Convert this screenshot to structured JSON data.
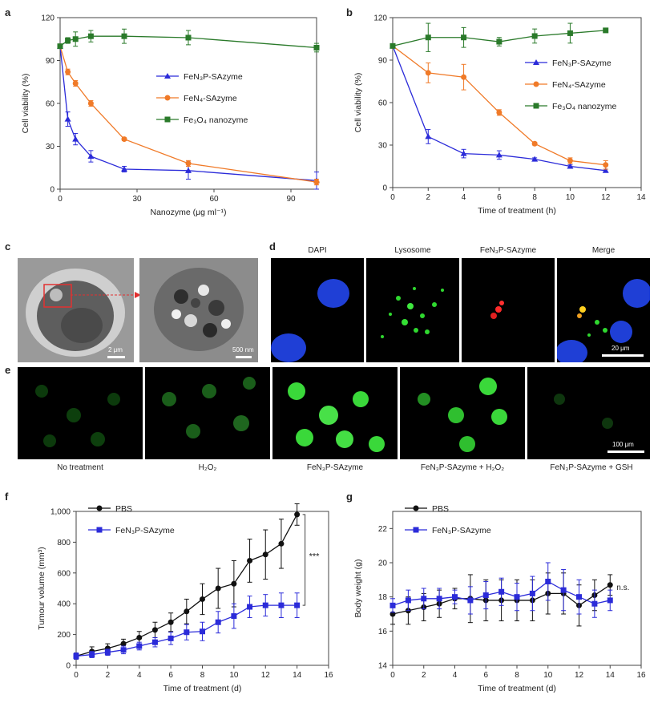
{
  "panels": {
    "a": "a",
    "b": "b",
    "c": "c",
    "d": "d",
    "e": "e",
    "f": "f",
    "g": "g"
  },
  "colors": {
    "blue": "#2b2bd9",
    "orange": "#f07a28",
    "green": "#2a7a2a",
    "black": "#111111"
  },
  "c_labels": {
    "scale_left": "2 μm",
    "scale_right": "500 nm"
  },
  "d_labels": {
    "dapi": "DAPI",
    "lysosome": "Lysosome",
    "sazyme": "FeN₃P-SAzyme",
    "merge": "Merge",
    "scale": "20 μm"
  },
  "e_labels": {
    "scale": "100 μm",
    "captions": [
      "No treatment",
      "H₂O₂",
      "FeN₃P-SAzyme",
      "FeN₃P-SAzyme + H₂O₂",
      "FeN₃P-SAzyme + GSH"
    ]
  },
  "f_labels": {
    "significance": "***"
  },
  "g_labels": {
    "significance": "n.s."
  },
  "chart_data": [
    {
      "id": "a",
      "type": "line",
      "xlabel": "Nanozyme (μg ml⁻¹)",
      "ylabel": "Cell viability (%)",
      "xlim": [
        0,
        100
      ],
      "ylim": [
        0,
        120
      ],
      "xticks": [
        0,
        30,
        60,
        90
      ],
      "yticks": [
        0,
        30,
        60,
        90,
        120
      ],
      "legend_position": "center-right",
      "series": [
        {
          "name": "FeN₃P-SAzyme",
          "color": "#2b2bd9",
          "marker": "triangle",
          "x": [
            0,
            3,
            6,
            12,
            25,
            50,
            100
          ],
          "y": [
            100,
            49,
            35,
            23,
            14,
            13,
            6
          ],
          "err": [
            0,
            5,
            4,
            4,
            2,
            6,
            6
          ]
        },
        {
          "name": "FeN₄-SAzyme",
          "color": "#f07a28",
          "marker": "circle",
          "x": [
            0,
            3,
            6,
            12,
            25,
            50,
            100
          ],
          "y": [
            100,
            82,
            74,
            60,
            35,
            18,
            5
          ],
          "err": [
            0,
            2,
            2,
            2,
            1,
            2,
            2
          ]
        },
        {
          "name": "Fe₃O₄ nanozyme",
          "color": "#2a7a2a",
          "marker": "square",
          "x": [
            0,
            3,
            6,
            12,
            25,
            50,
            100
          ],
          "y": [
            100,
            104,
            105,
            107,
            107,
            106,
            99
          ],
          "err": [
            0,
            2,
            5,
            4,
            5,
            5,
            3
          ]
        }
      ]
    },
    {
      "id": "b",
      "type": "line",
      "xlabel": "Time of treatment (h)",
      "ylabel": "Cell viability (%)",
      "xlim": [
        0,
        14
      ],
      "ylim": [
        0,
        120
      ],
      "xticks": [
        0,
        2,
        4,
        6,
        8,
        10,
        12,
        14
      ],
      "yticks": [
        0,
        30,
        60,
        90,
        120
      ],
      "legend_position": "center-right",
      "series": [
        {
          "name": "FeN₃P-SAzyme",
          "color": "#2b2bd9",
          "marker": "triangle",
          "x": [
            0,
            2,
            4,
            6,
            8,
            10,
            12
          ],
          "y": [
            100,
            36,
            24,
            23,
            20,
            15,
            12
          ],
          "err": [
            0,
            5,
            3,
            3,
            1,
            1,
            1
          ]
        },
        {
          "name": "FeN₄-SAzyme",
          "color": "#f07a28",
          "marker": "circle",
          "x": [
            0,
            2,
            4,
            6,
            8,
            10,
            12
          ],
          "y": [
            100,
            81,
            78,
            53,
            31,
            19,
            16
          ],
          "err": [
            0,
            7,
            9,
            2,
            1,
            2,
            3
          ]
        },
        {
          "name": "Fe₃O₄ nanozyme",
          "color": "#2a7a2a",
          "marker": "square",
          "x": [
            0,
            2,
            4,
            6,
            8,
            10,
            12
          ],
          "y": [
            100,
            106,
            106,
            103,
            107,
            109,
            111
          ],
          "err": [
            0,
            10,
            7,
            3,
            5,
            7,
            1
          ]
        }
      ]
    },
    {
      "id": "f",
      "type": "line",
      "xlabel": "Time of treatment (d)",
      "ylabel": "Tumour volume (mm³)",
      "xlim": [
        0,
        16
      ],
      "ylim": [
        0,
        1000
      ],
      "xticks": [
        0,
        2,
        4,
        6,
        8,
        10,
        12,
        14,
        16
      ],
      "yticks": [
        0,
        200,
        400,
        600,
        800,
        1000
      ],
      "ytick_labels": [
        "0",
        "200",
        "400",
        "600",
        "800",
        "1,000"
      ],
      "legend_position": "top-left",
      "series": [
        {
          "name": "PBS",
          "color": "#111111",
          "marker": "circle",
          "x": [
            0,
            1,
            2,
            3,
            4,
            5,
            6,
            7,
            8,
            9,
            10,
            11,
            12,
            13,
            14
          ],
          "y": [
            60,
            90,
            110,
            140,
            180,
            230,
            280,
            350,
            430,
            500,
            530,
            680,
            720,
            790,
            980
          ],
          "err": [
            20,
            30,
            30,
            30,
            40,
            50,
            60,
            80,
            100,
            130,
            150,
            140,
            160,
            160,
            70
          ]
        },
        {
          "name": "FeN₃P-SAzyme",
          "color": "#2b2bd9",
          "marker": "square",
          "x": [
            0,
            1,
            2,
            3,
            4,
            5,
            6,
            7,
            8,
            9,
            10,
            11,
            12,
            13,
            14
          ],
          "y": [
            60,
            70,
            85,
            100,
            125,
            150,
            175,
            215,
            220,
            280,
            320,
            380,
            390,
            390,
            390
          ],
          "err": [
            20,
            20,
            20,
            25,
            25,
            30,
            40,
            50,
            60,
            70,
            80,
            70,
            70,
            80,
            80
          ]
        }
      ]
    },
    {
      "id": "g",
      "type": "line",
      "xlabel": "Time of treatment (d)",
      "ylabel": "Body weight (g)",
      "xlim": [
        0,
        16
      ],
      "ylim": [
        14,
        23
      ],
      "xticks": [
        0,
        2,
        4,
        6,
        8,
        10,
        12,
        14,
        16
      ],
      "yticks": [
        14,
        16,
        18,
        20,
        22
      ],
      "legend_position": "top-left",
      "series": [
        {
          "name": "PBS",
          "color": "#111111",
          "marker": "circle",
          "x": [
            0,
            1,
            2,
            3,
            4,
            5,
            6,
            7,
            8,
            9,
            10,
            11,
            12,
            13,
            14
          ],
          "y": [
            17.0,
            17.2,
            17.4,
            17.6,
            17.9,
            17.9,
            17.8,
            17.8,
            17.8,
            17.8,
            18.2,
            18.2,
            17.5,
            18.1,
            18.7
          ],
          "err": [
            0.6,
            0.8,
            0.8,
            0.8,
            0.6,
            1.4,
            1.2,
            1.2,
            1.2,
            1.2,
            1.2,
            1.2,
            1.2,
            0.9,
            0.6
          ]
        },
        {
          "name": "FeN₃P-SAzyme",
          "color": "#2b2bd9",
          "marker": "square",
          "x": [
            0,
            1,
            2,
            3,
            4,
            5,
            6,
            7,
            8,
            9,
            10,
            11,
            12,
            13,
            14
          ],
          "y": [
            17.5,
            17.8,
            17.9,
            17.9,
            18.0,
            17.8,
            18.1,
            18.3,
            18.0,
            18.2,
            18.9,
            18.4,
            18.0,
            17.6,
            17.8
          ],
          "err": [
            0.4,
            0.6,
            0.6,
            0.6,
            0.4,
            0.8,
            0.8,
            0.8,
            0.8,
            1.0,
            1.1,
            1.2,
            1.0,
            0.8,
            0.6
          ]
        }
      ]
    }
  ]
}
